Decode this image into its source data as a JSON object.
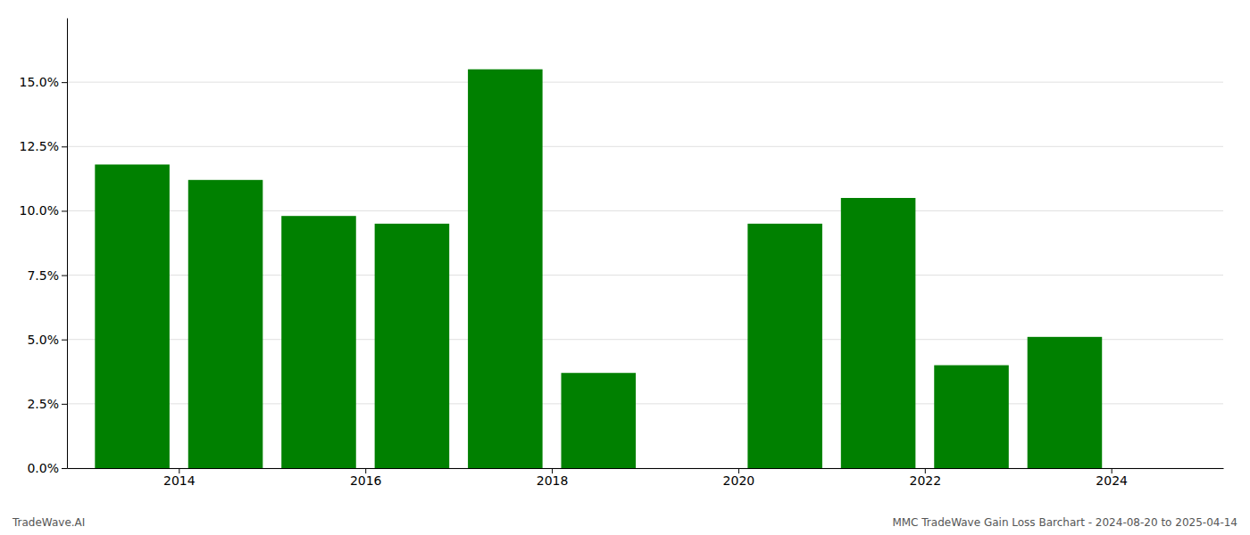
{
  "chart_data": {
    "type": "bar",
    "x": [
      2013.5,
      2014.5,
      2015.5,
      2016.5,
      2017.5,
      2018.5,
      2020.5,
      2021.5,
      2022.5,
      2023.5
    ],
    "values": [
      0.118,
      0.112,
      0.098,
      0.095,
      0.155,
      0.037,
      0.095,
      0.105,
      0.04,
      0.051
    ],
    "color": "#008000",
    "xlim": [
      2012.8,
      2025.2
    ],
    "xticks": [
      2014,
      2016,
      2018,
      2020,
      2022,
      2024
    ],
    "ylim": [
      0,
      0.175
    ],
    "yticks": [
      {
        "value": 0.0,
        "label": "0.0%"
      },
      {
        "value": 0.025,
        "label": "2.5%"
      },
      {
        "value": 0.05,
        "label": "5.0%"
      },
      {
        "value": 0.075,
        "label": "7.5%"
      },
      {
        "value": 0.1,
        "label": "10.0%"
      },
      {
        "value": 0.125,
        "label": "12.5%"
      },
      {
        "value": 0.15,
        "label": "15.0%"
      }
    ],
    "grid": true,
    "annotations": [
      "TradeWave.AI",
      "MMC TradeWave Gain Loss Barchart - 2024-08-20 to 2025-04-14"
    ]
  }
}
